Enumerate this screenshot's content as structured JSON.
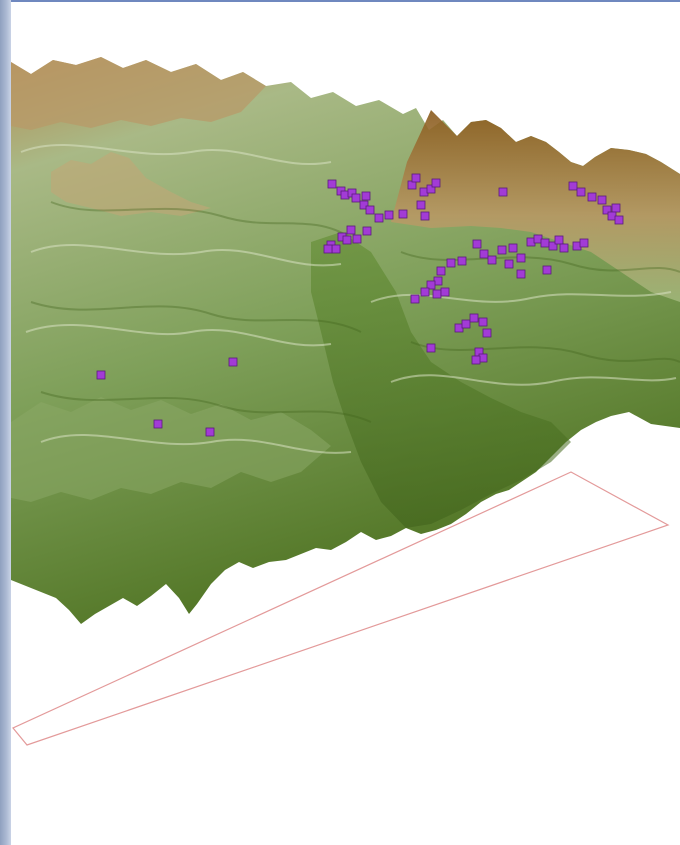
{
  "view": {
    "type": "3d-terrain-scene",
    "colors": {
      "background": "#ffffff",
      "frame_rail": "#9dadc9",
      "frame_border": "#6f88bf",
      "boundary_outline": "#e39a9a",
      "terrain_low": "#4f7322",
      "terrain_mid": "#a7c07f",
      "terrain_high": "#8a5a1c",
      "marker_fill": "#a23bd6",
      "marker_stroke": "#5b1d7a"
    },
    "marker_icon": "square-point-marker"
  }
}
